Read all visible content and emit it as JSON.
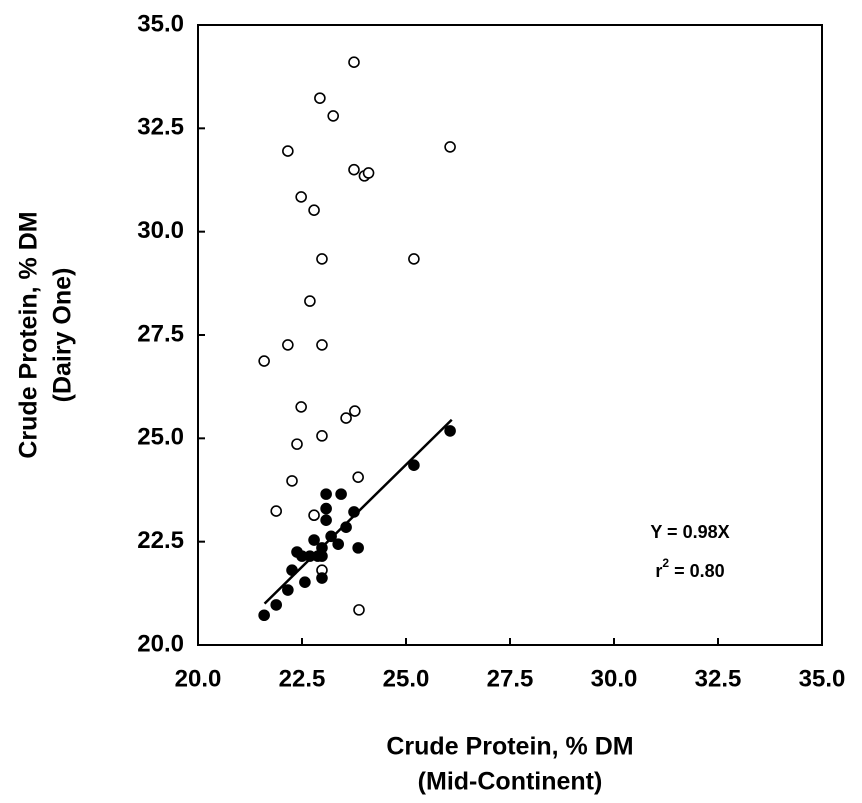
{
  "chart_data": {
    "type": "scatter",
    "xlabel": [
      "Crude Protein, % DM",
      "(Mid-Continent)"
    ],
    "ylabel": [
      "Crude Protein, % DM",
      "(Dairy One)"
    ],
    "xlim": [
      20,
      35
    ],
    "ylim": [
      20,
      35
    ],
    "xticks": [
      {
        "value": 20,
        "label": "20.0"
      },
      {
        "value": 22.5,
        "label": "22.5"
      },
      {
        "value": 25,
        "label": "25.0"
      },
      {
        "value": 27.5,
        "label": "27.5"
      },
      {
        "value": 30,
        "label": "30.0"
      },
      {
        "value": 32.5,
        "label": "32.5"
      },
      {
        "value": 35,
        "label": "35.0"
      }
    ],
    "yticks": [
      {
        "value": 20,
        "label": "20.0"
      },
      {
        "value": 22.5,
        "label": "22.5"
      },
      {
        "value": 25,
        "label": "25.0"
      },
      {
        "value": 27.5,
        "label": "27.5"
      },
      {
        "value": 30,
        "label": "30.0"
      },
      {
        "value": 32.5,
        "label": "32.5"
      },
      {
        "value": 35,
        "label": "35.0"
      }
    ],
    "series": [
      {
        "color": "#000000",
        "filled": false,
        "x": [
          23.75,
          22.93,
          23.25,
          22.16,
          26.06,
          23.75,
          24.0,
          24.1,
          22.48,
          22.79,
          22.98,
          25.19,
          22.69,
          21.59,
          22.16,
          22.98,
          22.48,
          23.77,
          23.56,
          22.98,
          22.38,
          23.85,
          22.26,
          21.88,
          22.79,
          22.98,
          23.87
        ],
        "values": [
          34.1,
          33.23,
          32.8,
          31.95,
          32.05,
          31.5,
          31.35,
          31.42,
          30.84,
          30.52,
          29.34,
          29.34,
          28.32,
          26.87,
          27.26,
          27.26,
          25.76,
          25.66,
          25.49,
          25.06,
          24.86,
          24.06,
          23.97,
          23.24,
          23.14,
          21.81,
          20.85
        ]
      },
      {
        "color": "#000000",
        "filled": true,
        "x": [
          21.59,
          21.88,
          22.16,
          22.26,
          22.38,
          22.5,
          22.57,
          22.69,
          22.79,
          22.88,
          22.98,
          22.98,
          22.98,
          23.08,
          23.08,
          23.08,
          23.2,
          23.37,
          23.44,
          23.56,
          23.75,
          23.85,
          25.19,
          26.06
        ],
        "values": [
          20.72,
          20.97,
          21.33,
          21.81,
          22.25,
          22.15,
          21.52,
          22.15,
          22.54,
          22.15,
          22.15,
          21.62,
          22.35,
          23.02,
          23.65,
          23.3,
          22.63,
          22.44,
          23.65,
          22.85,
          23.22,
          22.35,
          24.35,
          25.18
        ]
      }
    ],
    "fit_line": {
      "x": [
        21.6,
        26.1
      ],
      "values": [
        21.0,
        25.45
      ]
    },
    "annotations": [
      {
        "text": "Y = 0.98X"
      },
      {
        "base": "r",
        "sup": "2",
        "text": " = 0.80"
      }
    ]
  }
}
